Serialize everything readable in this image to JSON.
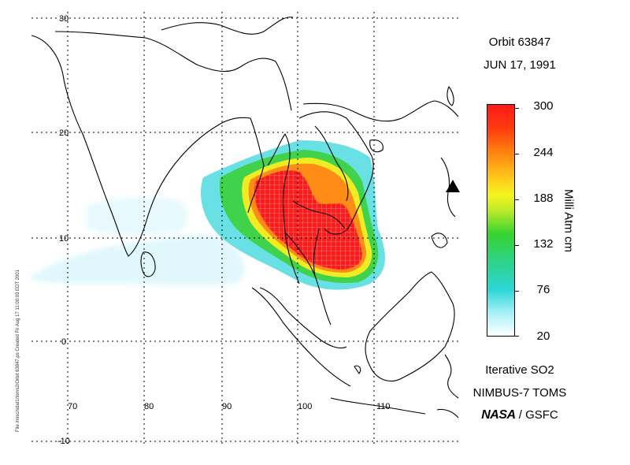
{
  "header": {
    "orbit": "Orbit 63847",
    "date": "JUN 17, 1991"
  },
  "footer": {
    "product": "Iterative SO2",
    "instrument": "NIMBUS-7 TOMS",
    "agency_logo": "NASA",
    "agency_suffix": "/ GSFC"
  },
  "colorbar": {
    "label": "Milli Atm cm",
    "ticks": [
      "300",
      "244",
      "188",
      "132",
      "76",
      "20"
    ],
    "range": [
      20,
      300
    ],
    "colors": [
      "#ffffff",
      "#a6f0f8",
      "#2cd6d6",
      "#36d22f",
      "#f6f41f",
      "#ff7f10",
      "#ff1a1a"
    ]
  },
  "axes": {
    "lat_labels": [
      "30",
      "20",
      "10",
      "0",
      "-10"
    ],
    "lon_labels": [
      "70",
      "80",
      "90",
      "100",
      "110"
    ]
  },
  "file_note": "File /misc/sdat1/toms2/Orbit 63847.ps Created Fri Aug 17 11:00:03 EDT 2001",
  "marker": {
    "icon": "triangle-marker-icon"
  },
  "chart_data": {
    "type": "heatmap",
    "title": "Orbit 63847",
    "variable": "Iterative SO2",
    "units": "Milli Atm cm",
    "xlim": [
      67,
      118
    ],
    "ylim": [
      -10,
      30
    ],
    "color_range": [
      20,
      300
    ],
    "plume_core": {
      "lon_range": [
        94,
        104
      ],
      "lat_range": [
        7,
        14
      ],
      "value": 300
    }
  }
}
